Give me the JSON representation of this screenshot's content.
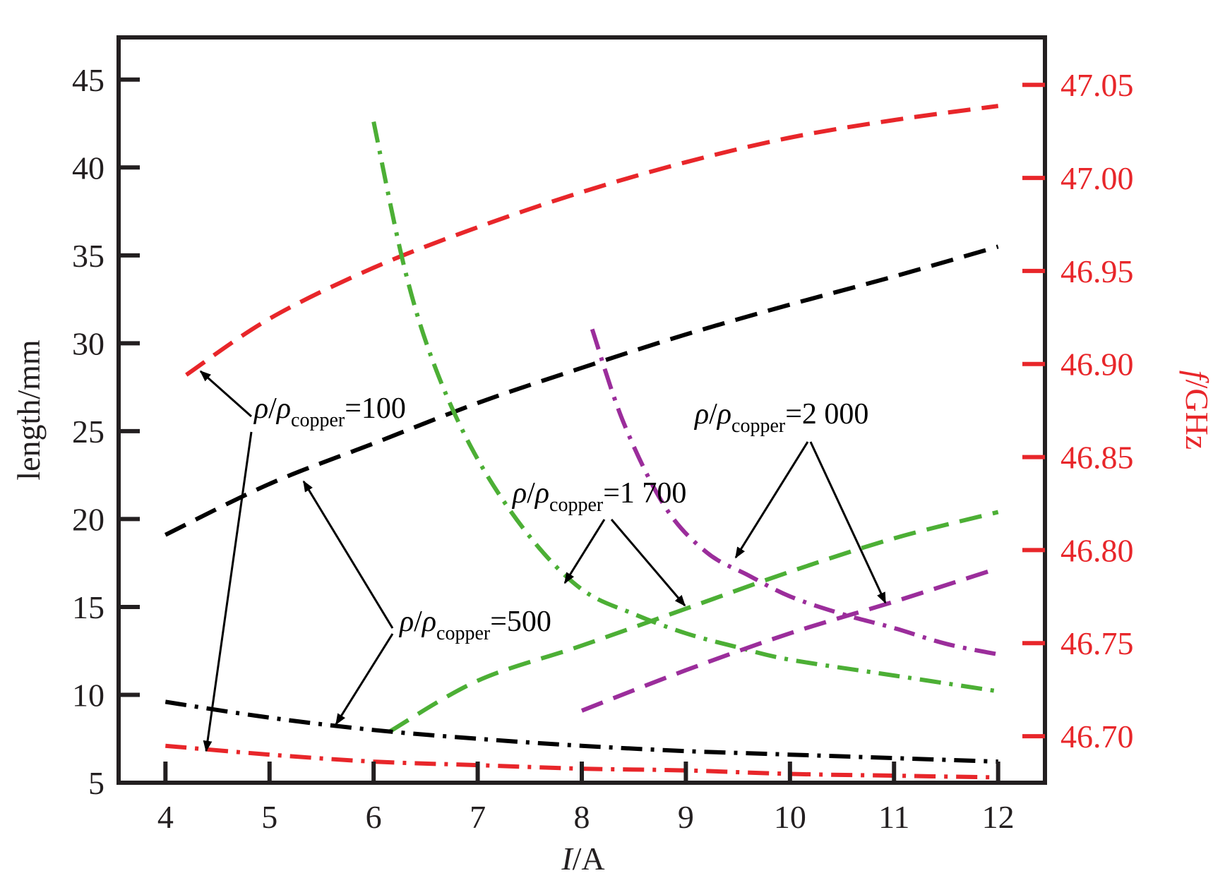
{
  "chart_data": {
    "type": "line",
    "xlabel_italic": "I",
    "xlabel_rest": "/A",
    "ylabel": "length/mm",
    "y2label_italic": "f",
    "y2label_rest": "/GHz",
    "xlim": [
      3.55,
      12.45
    ],
    "ylim": [
      5,
      47.4
    ],
    "y2lim": [
      46.675,
      47.0755
    ],
    "x_ticks": [
      "4",
      "5",
      "6",
      "7",
      "8",
      "9",
      "10",
      "11",
      "12"
    ],
    "y_ticks": [
      "5",
      "10",
      "15",
      "20",
      "25",
      "30",
      "35",
      "40",
      "45"
    ],
    "y2_ticks": [
      "46.70",
      "46.75",
      "46.80",
      "46.85",
      "46.90",
      "46.95",
      "47.00",
      "47.05"
    ],
    "colors": {
      "red": "#e8262a",
      "black": "#000000",
      "green": "#4caf35",
      "purple": "#9b2d9b",
      "right_axis": "#e8262a"
    },
    "series": [
      {
        "axis": "left",
        "style": "dash",
        "color": "red",
        "x": [
          4.2,
          5,
          6,
          7,
          8,
          9,
          10,
          11,
          12
        ],
        "y": [
          28.2,
          31.4,
          34.3,
          36.6,
          38.6,
          40.3,
          41.7,
          42.7,
          43.5
        ]
      },
      {
        "axis": "left",
        "style": "dash",
        "color": "black",
        "x": [
          4,
          5,
          6,
          7,
          8,
          9,
          10,
          11,
          12
        ],
        "y": [
          19.1,
          22.0,
          24.3,
          26.6,
          28.6,
          30.5,
          32.2,
          33.8,
          35.5
        ]
      },
      {
        "axis": "left",
        "style": "dashdot",
        "color": "green",
        "x": [
          6,
          6.3,
          6.6,
          7,
          7.5,
          8,
          8.5,
          9,
          9.5,
          10,
          11,
          12
        ],
        "y": [
          42.6,
          34.2,
          28.5,
          23.4,
          19.0,
          16.0,
          14.6,
          13.5,
          12.7,
          12.0,
          11.1,
          10.2
        ]
      },
      {
        "axis": "left",
        "style": "dashdot",
        "color": "purple",
        "x": [
          8.1,
          8.4,
          8.8,
          9.2,
          9.6,
          10,
          10.5,
          11,
          11.5,
          12
        ],
        "y": [
          30.8,
          25.5,
          20.7,
          18.1,
          16.8,
          15.6,
          14.6,
          13.8,
          12.9,
          12.3
        ]
      },
      {
        "axis": "left",
        "style": "dash",
        "color": "green",
        "x": [
          6.15,
          7,
          8,
          9,
          10,
          11,
          12
        ],
        "y": [
          7.9,
          10.8,
          12.8,
          14.9,
          17.0,
          18.9,
          20.4
        ]
      },
      {
        "axis": "left",
        "style": "dash",
        "color": "purple",
        "x": [
          8,
          9,
          10,
          11,
          12
        ],
        "y": [
          9.1,
          11.4,
          13.5,
          15.3,
          17.2
        ]
      },
      {
        "axis": "left",
        "style": "dashdot",
        "color": "black",
        "x": [
          4,
          5,
          6,
          7,
          8,
          9,
          10,
          11,
          12
        ],
        "y": [
          9.6,
          8.7,
          8.0,
          7.5,
          7.1,
          6.8,
          6.6,
          6.4,
          6.2
        ]
      },
      {
        "axis": "left",
        "style": "dashdot",
        "color": "red",
        "x": [
          4,
          5,
          6,
          7,
          8,
          9,
          10,
          11,
          12
        ],
        "y": [
          7.1,
          6.6,
          6.2,
          6.0,
          5.8,
          5.7,
          5.5,
          5.4,
          5.3
        ]
      }
    ],
    "annotations": [
      {
        "rho": "ρ",
        "sub": "copper",
        "value": "=100"
      },
      {
        "rho": "ρ",
        "sub": "copper",
        "value": "=500"
      },
      {
        "rho": "ρ",
        "sub": "copper",
        "value": "=1 700"
      },
      {
        "rho": "ρ",
        "sub": "copper",
        "value": "=2 000"
      }
    ]
  }
}
